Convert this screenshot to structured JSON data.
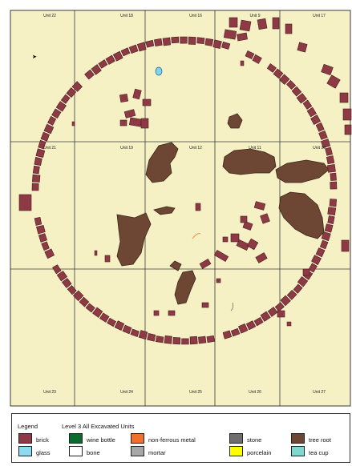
{
  "map": {
    "colors": {
      "background": "#f5f1c4",
      "grid": "#3a3a3a",
      "brick": "#8e3a44",
      "brick_edge": "#4a1a22",
      "tree_root": "#6d4634",
      "tree_root_edge": "#3d2518",
      "glass": "#7fd3ee",
      "mortar_fill": "#b0b0b0"
    },
    "unit_labels": {
      "top_row": [
        "Unit 22",
        "Unit 18",
        "Unit 16",
        "Unit 9",
        "Unit 17"
      ],
      "middle_row": [
        "Unit 21",
        "Unit 19",
        "Unit 12",
        "Unit 11",
        "Unit 20"
      ],
      "bottom_row": [
        "Unit 23",
        "Unit 24",
        "Unit 25",
        "Unit 26",
        "Unit 27"
      ]
    },
    "north_arrow_glyph": "➤"
  },
  "legend": {
    "heading": "Legend",
    "title": "Level 3 All Excavated Units",
    "items": [
      {
        "name": "brick",
        "label": "brick",
        "color": "#8e3a44"
      },
      {
        "name": "glass",
        "label": "glass",
        "color": "#8fdaf2"
      },
      {
        "name": "wine-bottle",
        "label": "wine bottle",
        "color": "#0b6b2c"
      },
      {
        "name": "bone",
        "label": "bone",
        "color": "#ffffff"
      },
      {
        "name": "non-ferrous-metal",
        "label": "non-ferrous metal",
        "color": "#f2712a"
      },
      {
        "name": "mortar",
        "label": "mortar",
        "color": "#a7a7a7"
      },
      {
        "name": "stone",
        "label": "stone",
        "color": "#6e6e6e"
      },
      {
        "name": "porcelain",
        "label": "porcelain",
        "color": "#ffff00"
      },
      {
        "name": "tree-root",
        "label": "tree root",
        "color": "#6d4634"
      },
      {
        "name": "tea-cup",
        "label": "tea cup",
        "color": "#7fd8d0"
      }
    ]
  }
}
